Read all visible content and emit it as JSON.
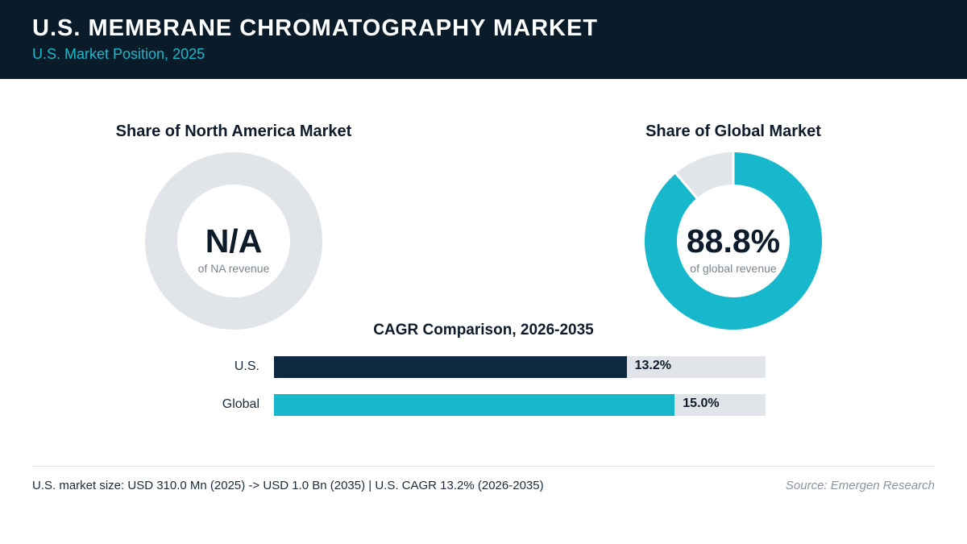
{
  "header": {
    "title": "U.S. MEMBRANE CHROMATOGRAPHY MARKET",
    "subtitle": "U.S. Market Position, 2025"
  },
  "colors": {
    "header_bg": "#0a1b2a",
    "accent": "#17b8cc",
    "navy": "#0e2840",
    "track": "#e1e5e9"
  },
  "footer": {
    "note": "U.S. market size: USD 310.0 Mn (2025) -> USD 1.0 Bn (2035)  |  U.S. CAGR 13.2% (2026-2035)",
    "source": "Source: Emergen Research"
  },
  "chart_data": [
    {
      "type": "pie",
      "variant": "donut",
      "title": "Share of North America Market",
      "center_value": "N/A",
      "center_caption": "of NA revenue",
      "share_percent": null
    },
    {
      "type": "pie",
      "variant": "donut",
      "title": "Share of Global Market",
      "center_value": "88.8%",
      "center_caption": "of global revenue",
      "share_percent": 88.8
    },
    {
      "type": "bar",
      "orientation": "horizontal",
      "title": "CAGR Comparison, 2026-2035",
      "categories": [
        "U.S.",
        "Global"
      ],
      "values": [
        13.2,
        15.0
      ],
      "value_labels": [
        "13.2%",
        "15.0%"
      ],
      "xlim": [
        0,
        18.4
      ]
    }
  ]
}
